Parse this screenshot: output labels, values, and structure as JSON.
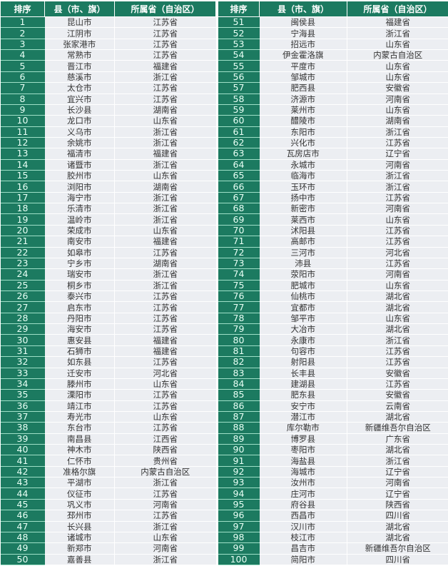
{
  "headers": {
    "rank": "排序",
    "county": "县（市、旗）",
    "province": "所属省（自治区）"
  },
  "rows": [
    [
      "1",
      "昆山市",
      "江苏省"
    ],
    [
      "2",
      "江阴市",
      "江苏省"
    ],
    [
      "3",
      "张家港市",
      "江苏省"
    ],
    [
      "4",
      "常熟市",
      "江苏省"
    ],
    [
      "5",
      "晋江市",
      "福建省"
    ],
    [
      "6",
      "慈溪市",
      "浙江省"
    ],
    [
      "7",
      "太仓市",
      "江苏省"
    ],
    [
      "8",
      "宜兴市",
      "江苏省"
    ],
    [
      "9",
      "长沙县",
      "湖南省"
    ],
    [
      "10",
      "龙口市",
      "山东省"
    ],
    [
      "11",
      "义乌市",
      "浙江省"
    ],
    [
      "12",
      "余姚市",
      "浙江省"
    ],
    [
      "13",
      "福清市",
      "福建省"
    ],
    [
      "14",
      "诸暨市",
      "浙江省"
    ],
    [
      "15",
      "胶州市",
      "山东省"
    ],
    [
      "16",
      "浏阳市",
      "湖南省"
    ],
    [
      "17",
      "海宁市",
      "浙江省"
    ],
    [
      "18",
      "乐清市",
      "浙江省"
    ],
    [
      "19",
      "温岭市",
      "浙江省"
    ],
    [
      "20",
      "荣成市",
      "山东省"
    ],
    [
      "21",
      "南安市",
      "福建省"
    ],
    [
      "22",
      "如皋市",
      "江苏省"
    ],
    [
      "23",
      "宁乡市",
      "湖南省"
    ],
    [
      "24",
      "瑞安市",
      "浙江省"
    ],
    [
      "25",
      "桐乡市",
      "浙江省"
    ],
    [
      "26",
      "泰兴市",
      "江苏省"
    ],
    [
      "27",
      "启东市",
      "江苏省"
    ],
    [
      "28",
      "丹阳市",
      "江苏省"
    ],
    [
      "29",
      "海安市",
      "江苏省"
    ],
    [
      "30",
      "惠安县",
      "福建省"
    ],
    [
      "31",
      "石狮市",
      "福建省"
    ],
    [
      "32",
      "如东县",
      "江苏省"
    ],
    [
      "33",
      "迁安市",
      "河北省"
    ],
    [
      "34",
      "滕州市",
      "山东省"
    ],
    [
      "35",
      "溧阳市",
      "江苏省"
    ],
    [
      "36",
      "靖江市",
      "江苏省"
    ],
    [
      "37",
      "寿光市",
      "山东省"
    ],
    [
      "38",
      "东台市",
      "江苏省"
    ],
    [
      "39",
      "南昌县",
      "江西省"
    ],
    [
      "40",
      "神木市",
      "陕西省"
    ],
    [
      "41",
      "仁怀市",
      "贵州省"
    ],
    [
      "42",
      "准格尔旗",
      "内蒙古自治区"
    ],
    [
      "43",
      "平湖市",
      "浙江省"
    ],
    [
      "44",
      "仪征市",
      "江苏省"
    ],
    [
      "45",
      "巩义市",
      "河南省"
    ],
    [
      "46",
      "邳州市",
      "江苏省"
    ],
    [
      "47",
      "长兴县",
      "浙江省"
    ],
    [
      "48",
      "诸城市",
      "山东省"
    ],
    [
      "49",
      "新郑市",
      "河南省"
    ],
    [
      "50",
      "嘉善县",
      "浙江省"
    ],
    [
      "51",
      "闽侯县",
      "福建省"
    ],
    [
      "52",
      "宁海县",
      "浙江省"
    ],
    [
      "53",
      "招远市",
      "山东省"
    ],
    [
      "54",
      "伊金霍洛旗",
      "内蒙古自治区"
    ],
    [
      "55",
      "平度市",
      "山东省"
    ],
    [
      "56",
      "邹城市",
      "山东省"
    ],
    [
      "57",
      "肥西县",
      "安徽省"
    ],
    [
      "58",
      "济源市",
      "河南省"
    ],
    [
      "59",
      "莱州市",
      "山东省"
    ],
    [
      "60",
      "醴陵市",
      "湖南省"
    ],
    [
      "61",
      "东阳市",
      "浙江省"
    ],
    [
      "62",
      "兴化市",
      "江苏省"
    ],
    [
      "63",
      "瓦房店市",
      "辽宁省"
    ],
    [
      "64",
      "永城市",
      "河南省"
    ],
    [
      "65",
      "临海市",
      "浙江省"
    ],
    [
      "66",
      "玉环市",
      "浙江省"
    ],
    [
      "67",
      "扬中市",
      "江苏省"
    ],
    [
      "68",
      "新密市",
      "河南省"
    ],
    [
      "69",
      "莱西市",
      "山东省"
    ],
    [
      "70",
      "沭阳县",
      "江苏省"
    ],
    [
      "71",
      "高邮市",
      "江苏省"
    ],
    [
      "72",
      "三河市",
      "河北省"
    ],
    [
      "73",
      "沛县",
      "江苏省"
    ],
    [
      "74",
      "荥阳市",
      "河南省"
    ],
    [
      "75",
      "肥城市",
      "山东省"
    ],
    [
      "76",
      "仙桃市",
      "湖北省"
    ],
    [
      "77",
      "宜都市",
      "湖北省"
    ],
    [
      "78",
      "邹平市",
      "山东省"
    ],
    [
      "79",
      "大冶市",
      "湖北省"
    ],
    [
      "80",
      "永康市",
      "浙江省"
    ],
    [
      "81",
      "句容市",
      "江苏省"
    ],
    [
      "82",
      "射阳县",
      "江苏省"
    ],
    [
      "83",
      "长丰县",
      "安徽省"
    ],
    [
      "84",
      "建湖县",
      "江苏省"
    ],
    [
      "85",
      "肥东县",
      "安徽省"
    ],
    [
      "86",
      "安宁市",
      "云南省"
    ],
    [
      "87",
      "潜江市",
      "湖北省"
    ],
    [
      "88",
      "库尔勒市",
      "新疆维吾尔自治区"
    ],
    [
      "89",
      "博罗县",
      "广东省"
    ],
    [
      "90",
      "枣阳市",
      "湖北省"
    ],
    [
      "91",
      "海盐县",
      "浙江省"
    ],
    [
      "92",
      "海城市",
      "辽宁省"
    ],
    [
      "93",
      "汝州市",
      "河南省"
    ],
    [
      "94",
      "庄河市",
      "辽宁省"
    ],
    [
      "95",
      "府谷县",
      "陕西省"
    ],
    [
      "96",
      "西昌市",
      "四川省"
    ],
    [
      "97",
      "汉川市",
      "湖北省"
    ],
    [
      "98",
      "枝江市",
      "湖北省"
    ],
    [
      "99",
      "昌吉市",
      "新疆维吾尔自治区"
    ],
    [
      "100",
      "简阳市",
      "四川省"
    ]
  ],
  "colors": {
    "header_bg": "#1c7a60",
    "cell_bg": "#eceef2"
  }
}
